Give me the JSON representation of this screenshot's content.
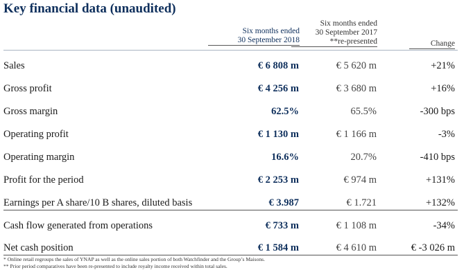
{
  "title": "Key financial data (unaudited)",
  "headers": {
    "col1": [
      "Six months ended",
      "30 September 2018"
    ],
    "col2": [
      "Six months ended",
      "30 September 2017",
      "**re-presented"
    ],
    "col3": "Change"
  },
  "rows": [
    {
      "label": "Sales",
      "v2018": "€ 6 808 m",
      "v2017": "€ 5 620 m",
      "change": "+21%"
    },
    {
      "label": "Gross profit",
      "v2018": "€ 4 256 m",
      "v2017": "€ 3 680 m",
      "change": "+16%"
    },
    {
      "label": "Gross margin",
      "v2018": "62.5%",
      "v2017": "65.5%",
      "change": "-300 bps"
    },
    {
      "label": "Operating profit",
      "v2018": "€ 1 130 m",
      "v2017": "€ 1 166 m",
      "change": "-3%"
    },
    {
      "label": "Operating margin",
      "v2018": "16.6%",
      "v2017": "20.7%",
      "change": "-410 bps"
    },
    {
      "label": "Profit for the period",
      "v2018": "€ 2 253 m",
      "v2017": "€ 974 m",
      "change": "+131%"
    },
    {
      "label": "Earnings per A share/10 B shares, diluted basis",
      "v2018": "€ 3.987",
      "v2017": "€ 1.721",
      "change": "+132%"
    },
    {
      "label": "Cash flow generated from operations",
      "v2018": "€ 733 m",
      "v2017": "€ 1 108 m",
      "change": "-34%"
    },
    {
      "label": "Net cash position",
      "v2018": "€ 1 584 m",
      "v2017": "€ 4 610 m",
      "change": "€ -3 026 m"
    }
  ],
  "footnotes": [
    "* Online retail regroups the sales of YNAP as well as the online sales portion of both Watchfinder and the Group’s Maisons.",
    "** Prior period comparatives have been re-presented to include royalty income received within total sales."
  ],
  "colors": {
    "accent": "#0e2f5c"
  }
}
